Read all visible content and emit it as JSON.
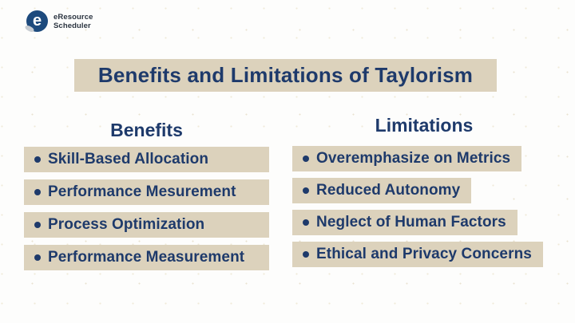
{
  "brand": {
    "name_line1": "eResource",
    "name_line2": "Scheduler",
    "logo_letter": "e"
  },
  "title": "Benefits and Limitations of Taylorism",
  "bullet": "•",
  "benefits": {
    "header": "Benefits",
    "items": [
      "Skill-Based Allocation",
      "Performance Mesurement",
      "Process Optimization",
      "Performance Measurement"
    ]
  },
  "limitations": {
    "header": "Limitations",
    "items": [
      "Overemphasize on Metrics",
      "Reduced Autonomy",
      "Neglect of Human Factors",
      "Ethical and Privacy Concerns"
    ]
  },
  "colors": {
    "navy_text": "#1e3a6b",
    "highlight_beige": "#dcd2bc",
    "logo_blue": "#1d4a7d",
    "background": "#fdfdfc"
  }
}
